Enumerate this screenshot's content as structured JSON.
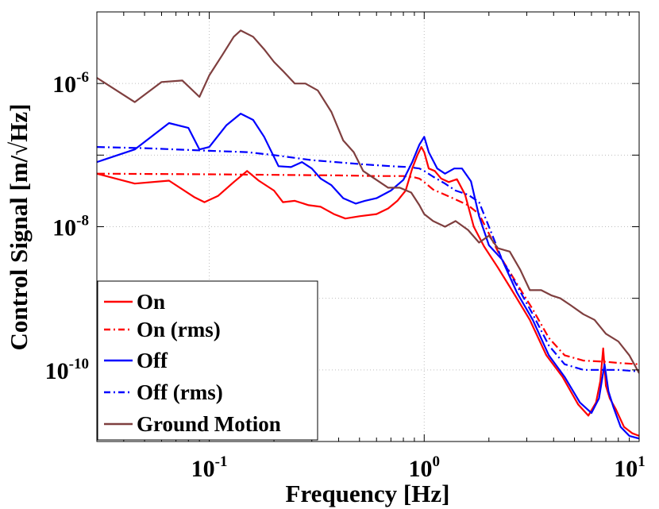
{
  "chart_data": {
    "type": "line",
    "xscale": "log",
    "yscale": "log",
    "xlabel": "Frequency [Hz]",
    "ylabel": "Control Signal [m/√Hz]",
    "xlim": [
      0.03,
      10
    ],
    "ylim": [
      1e-11,
      1e-05
    ],
    "grid": true,
    "legend_position": "bottom-left",
    "x_ticks": [
      {
        "value": 0.1,
        "base": "10",
        "exp": "-1"
      },
      {
        "value": 1,
        "base": "10",
        "exp": "0"
      },
      {
        "value": 10,
        "base": "10",
        "exp": "1"
      }
    ],
    "y_ticks": [
      {
        "value": 1e-10,
        "base": "10",
        "exp": "-10"
      },
      {
        "value": 1e-08,
        "base": "10",
        "exp": "-8"
      },
      {
        "value": 1e-06,
        "base": "10",
        "exp": "-6"
      }
    ],
    "series": [
      {
        "name": "On",
        "color": "#ff0000",
        "dash": "solid",
        "x": [
          0.03,
          0.045,
          0.065,
          0.085,
          0.095,
          0.11,
          0.13,
          0.15,
          0.17,
          0.2,
          0.22,
          0.25,
          0.29,
          0.33,
          0.38,
          0.43,
          0.5,
          0.6,
          0.68,
          0.75,
          0.82,
          0.88,
          0.93,
          0.97,
          1.0,
          1.05,
          1.12,
          1.2,
          1.3,
          1.42,
          1.55,
          1.7,
          1.9,
          2.2,
          2.6,
          3.1,
          3.7,
          4.4,
          5.2,
          5.8,
          6.3,
          6.6,
          6.8,
          7.0,
          7.3,
          7.8,
          8.5,
          9.3,
          10
        ],
        "y": [
          5.5e-08,
          4e-08,
          4.4e-08,
          2.6e-08,
          2.2e-08,
          2.7e-08,
          4.2e-08,
          6e-08,
          4.4e-08,
          3.2e-08,
          2.2e-08,
          2.3e-08,
          2e-08,
          1.9e-08,
          1.5e-08,
          1.3e-08,
          1.4e-08,
          1.5e-08,
          1.8e-08,
          2.3e-08,
          3.2e-08,
          6.5e-08,
          1e-07,
          1.3e-07,
          1.1e-07,
          6.5e-08,
          6e-08,
          4.7e-08,
          4.2e-08,
          4.6e-08,
          2.8e-08,
          1e-08,
          5.3e-09,
          2.7e-09,
          1.2e-09,
          5e-10,
          1.6e-10,
          8e-11,
          3.3e-11,
          2.3e-11,
          3.5e-11,
          7e-11,
          2e-10,
          6e-11,
          4e-11,
          2.8e-11,
          1.6e-11,
          1.3e-11,
          1.2e-11
        ]
      },
      {
        "name": "On (rms)",
        "color": "#ff0000",
        "dash": "dashdot",
        "x": [
          0.03,
          0.1,
          0.2,
          0.4,
          0.6,
          0.8,
          0.9,
          0.95,
          1.0,
          1.1,
          1.25,
          1.4,
          1.6,
          1.8,
          2.0,
          2.3,
          2.7,
          3.2,
          3.8,
          4.5,
          5.5,
          7.0,
          8.0,
          10
        ],
        "y": [
          5.5e-08,
          5.4e-08,
          5.3e-08,
          5.2e-08,
          5.1e-08,
          5.1e-08,
          4.9e-08,
          4.7e-08,
          4.2e-08,
          3.3e-08,
          2.8e-08,
          2.4e-08,
          2e-08,
          1.5e-08,
          8e-09,
          3.5e-09,
          1.6e-09,
          7e-10,
          2.8e-10,
          1.6e-10,
          1.35e-10,
          1.3e-10,
          1.25e-10,
          1.2e-10
        ]
      },
      {
        "name": "Off",
        "color": "#0000ff",
        "dash": "solid",
        "x": [
          0.03,
          0.045,
          0.065,
          0.08,
          0.09,
          0.1,
          0.12,
          0.14,
          0.16,
          0.18,
          0.21,
          0.24,
          0.27,
          0.3,
          0.33,
          0.37,
          0.42,
          0.48,
          0.53,
          0.6,
          0.7,
          0.8,
          0.88,
          0.95,
          1.0,
          1.05,
          1.15,
          1.25,
          1.38,
          1.5,
          1.65,
          1.8,
          2.0,
          2.3,
          2.7,
          3.2,
          3.8,
          4.5,
          5.3,
          6.0,
          6.5,
          6.9,
          7.2,
          7.6,
          8.2,
          9.0,
          10
        ],
        "y": [
          8e-08,
          1.2e-07,
          2.8e-07,
          2.4e-07,
          1.2e-07,
          1.3e-07,
          2.6e-07,
          3.8e-07,
          3.1e-07,
          1.8e-07,
          7e-08,
          6.8e-08,
          8e-08,
          6.5e-08,
          4.7e-08,
          3.8e-08,
          2.5e-08,
          2.1e-08,
          2.3e-08,
          2.5e-08,
          3.2e-08,
          4.5e-08,
          8e-08,
          1.4e-07,
          1.8e-07,
          1.1e-07,
          6.5e-08,
          5.5e-08,
          6.5e-08,
          6.5e-08,
          4.3e-08,
          1.4e-08,
          5.5e-09,
          3.5e-09,
          1.2e-09,
          5e-10,
          1.6e-10,
          8e-11,
          3.5e-11,
          2.5e-11,
          4e-11,
          1.2e-10,
          5e-11,
          3e-11,
          1.6e-11,
          1.2e-11,
          1.1e-11
        ]
      },
      {
        "name": "Off (rms)",
        "color": "#0000ff",
        "dash": "dashdot",
        "x": [
          0.03,
          0.05,
          0.07,
          0.1,
          0.15,
          0.2,
          0.3,
          0.5,
          0.7,
          0.85,
          0.95,
          1.0,
          1.1,
          1.25,
          1.4,
          1.6,
          1.8,
          2.0,
          2.3,
          2.7,
          3.2,
          3.8,
          4.5,
          5.5,
          7.0,
          8.0,
          10
        ],
        "y": [
          1.3e-07,
          1.25e-07,
          1.2e-07,
          1.15e-07,
          1.1e-07,
          1e-07,
          8.5e-08,
          7.5e-08,
          7e-08,
          6.8e-08,
          6.5e-08,
          6e-08,
          5e-08,
          4e-08,
          3.2e-08,
          2.8e-08,
          2.2e-08,
          1e-08,
          3.5e-09,
          1.5e-09,
          6e-10,
          2.2e-10,
          1.2e-10,
          1e-10,
          1e-10,
          1e-10,
          9.5e-11
        ]
      },
      {
        "name": "Ground Motion",
        "color": "#7f3f3f",
        "dash": "solid",
        "x": [
          0.03,
          0.045,
          0.06,
          0.075,
          0.09,
          0.1,
          0.115,
          0.13,
          0.14,
          0.16,
          0.18,
          0.2,
          0.22,
          0.25,
          0.28,
          0.32,
          0.37,
          0.42,
          0.47,
          0.52,
          0.6,
          0.68,
          0.77,
          0.87,
          0.95,
          1.0,
          1.1,
          1.25,
          1.4,
          1.6,
          1.8,
          2.0,
          2.2,
          2.5,
          2.8,
          3.1,
          3.5,
          3.9,
          4.3,
          4.8,
          5.5,
          6.2,
          7.0,
          8.0,
          9.0,
          10
        ],
        "y": [
          1.2e-06,
          5.5e-07,
          1.05e-06,
          1.1e-06,
          6.5e-07,
          1.3e-06,
          2.5e-06,
          4.5e-06,
          5.5e-06,
          4.5e-06,
          3e-06,
          2e-06,
          1.5e-06,
          1e-06,
          1e-06,
          8e-07,
          4e-07,
          1.6e-07,
          1.1e-07,
          6e-08,
          4.5e-08,
          3.5e-08,
          3.5e-08,
          3e-08,
          2e-08,
          1.5e-08,
          1.2e-08,
          1e-08,
          1.2e-08,
          9e-09,
          6e-09,
          7.5e-09,
          5e-09,
          4.5e-09,
          2.5e-09,
          1.3e-09,
          1.3e-09,
          1.1e-09,
          1e-09,
          8e-10,
          6e-10,
          5e-10,
          3.2e-10,
          2.5e-10,
          1.6e-10,
          9e-11
        ]
      }
    ]
  }
}
